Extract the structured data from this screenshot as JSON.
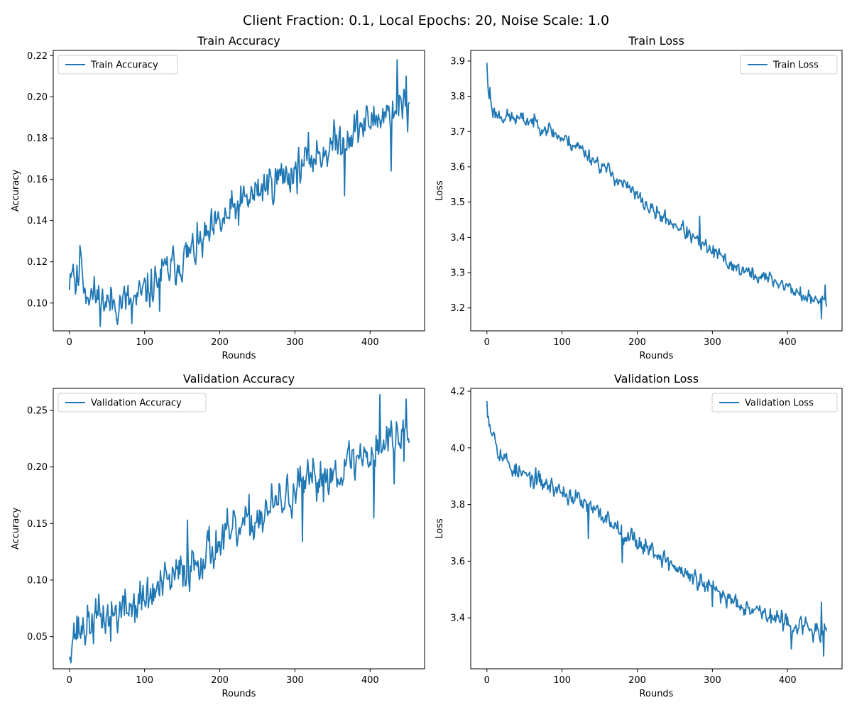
{
  "figure_title": "Client Fraction: 0.1, Local Epochs: 20, Noise Scale: 1.0",
  "chart_data": [
    {
      "type": "line",
      "title": "Train Accuracy",
      "xlabel": "Rounds",
      "ylabel": "Accuracy",
      "xlim": [
        -21.5,
        472.5
      ],
      "ylim": [
        0.0865,
        0.2225
      ],
      "xticks": [
        0,
        100,
        200,
        300,
        400
      ],
      "yticks": [
        0.1,
        0.12,
        0.14,
        0.16,
        0.18,
        0.2,
        0.22
      ],
      "ytick_decimals": 2,
      "legend_loc": "upper left",
      "grid": false,
      "series": [
        {
          "name": "Train Accuracy",
          "color": "#1f77b4",
          "noise": 0.0075,
          "seed": 11,
          "points": [
            [
              0,
              0.112
            ],
            [
              2,
              0.118
            ],
            [
              5,
              0.12
            ],
            [
              8,
              0.109
            ],
            [
              12,
              0.112
            ],
            [
              15,
              0.125
            ],
            [
              20,
              0.108
            ],
            [
              30,
              0.104
            ],
            [
              40,
              0.102
            ],
            [
              50,
              0.1
            ],
            [
              60,
              0.1
            ],
            [
              70,
              0.101
            ],
            [
              80,
              0.1
            ],
            [
              90,
              0.101
            ],
            [
              100,
              0.105
            ],
            [
              110,
              0.108
            ],
            [
              120,
              0.113
            ],
            [
              140,
              0.118
            ],
            [
              160,
              0.124
            ],
            [
              180,
              0.13
            ],
            [
              200,
              0.138
            ],
            [
              220,
              0.145
            ],
            [
              240,
              0.151
            ],
            [
              260,
              0.157
            ],
            [
              280,
              0.161
            ],
            [
              300,
              0.164
            ],
            [
              320,
              0.17
            ],
            [
              340,
              0.174
            ],
            [
              360,
              0.179
            ],
            [
              380,
              0.184
            ],
            [
              400,
              0.188
            ],
            [
              420,
              0.192
            ],
            [
              440,
              0.196
            ],
            [
              452,
              0.195
            ]
          ],
          "spikes": [
            [
              15,
              0.125
            ],
            [
              83,
              0.09
            ],
            [
              120,
              0.096
            ],
            [
              366,
              0.152
            ],
            [
              428,
              0.164
            ],
            [
              436,
              0.218
            ],
            [
              450,
              0.183
            ],
            [
              448,
              0.21
            ]
          ]
        }
      ]
    },
    {
      "type": "line",
      "title": "Train Loss",
      "xlabel": "Rounds",
      "ylabel": "Loss",
      "xlim": [
        -21.5,
        472.5
      ],
      "ylim": [
        3.135,
        3.93
      ],
      "xticks": [
        0,
        100,
        200,
        300,
        400
      ],
      "yticks": [
        3.2,
        3.3,
        3.4,
        3.5,
        3.6,
        3.7,
        3.8,
        3.9
      ],
      "ytick_decimals": 1,
      "legend_loc": "upper right",
      "grid": false,
      "series": [
        {
          "name": "Train Loss",
          "color": "#1f77b4",
          "noise": 0.017,
          "seed": 23,
          "points": [
            [
              0,
              3.9
            ],
            [
              2,
              3.8
            ],
            [
              5,
              3.79
            ],
            [
              8,
              3.76
            ],
            [
              12,
              3.75
            ],
            [
              20,
              3.745
            ],
            [
              40,
              3.735
            ],
            [
              60,
              3.73
            ],
            [
              80,
              3.71
            ],
            [
              100,
              3.68
            ],
            [
              120,
              3.66
            ],
            [
              140,
              3.625
            ],
            [
              160,
              3.59
            ],
            [
              180,
              3.555
            ],
            [
              200,
              3.515
            ],
            [
              220,
              3.475
            ],
            [
              240,
              3.45
            ],
            [
              260,
              3.425
            ],
            [
              280,
              3.385
            ],
            [
              300,
              3.36
            ],
            [
              320,
              3.33
            ],
            [
              340,
              3.305
            ],
            [
              360,
              3.29
            ],
            [
              380,
              3.28
            ],
            [
              400,
              3.26
            ],
            [
              420,
              3.235
            ],
            [
              440,
              3.215
            ],
            [
              452,
              3.23
            ]
          ],
          "spikes": [
            [
              0,
              3.895
            ],
            [
              4,
              3.825
            ],
            [
              283,
              3.46
            ],
            [
              445,
              3.17
            ],
            [
              450,
              3.265
            ]
          ]
        }
      ]
    },
    {
      "type": "line",
      "title": "Validation Accuracy",
      "xlabel": "Rounds",
      "ylabel": "Accuracy",
      "xlim": [
        -21.5,
        472.5
      ],
      "ylim": [
        0.0215,
        0.2695
      ],
      "xticks": [
        0,
        100,
        200,
        300,
        400
      ],
      "yticks": [
        0.05,
        0.1,
        0.15,
        0.2,
        0.25
      ],
      "ytick_decimals": 2,
      "legend_loc": "upper left",
      "grid": false,
      "series": [
        {
          "name": "Validation Accuracy",
          "color": "#1f77b4",
          "noise": 0.015,
          "seed": 37,
          "points": [
            [
              0,
              0.03
            ],
            [
              2,
              0.05
            ],
            [
              5,
              0.055
            ],
            [
              10,
              0.055
            ],
            [
              20,
              0.058
            ],
            [
              40,
              0.067
            ],
            [
              60,
              0.07
            ],
            [
              80,
              0.076
            ],
            [
              100,
              0.083
            ],
            [
              120,
              0.092
            ],
            [
              140,
              0.102
            ],
            [
              160,
              0.112
            ],
            [
              180,
              0.124
            ],
            [
              200,
              0.133
            ],
            [
              220,
              0.141
            ],
            [
              240,
              0.15
            ],
            [
              260,
              0.16
            ],
            [
              280,
              0.168
            ],
            [
              300,
              0.178
            ],
            [
              320,
              0.185
            ],
            [
              340,
              0.192
            ],
            [
              360,
              0.199
            ],
            [
              380,
              0.206
            ],
            [
              400,
              0.213
            ],
            [
              420,
              0.222
            ],
            [
              440,
              0.23
            ],
            [
              452,
              0.23
            ]
          ],
          "spikes": [
            [
              0,
              0.03
            ],
            [
              55,
              0.046
            ],
            [
              157,
              0.153
            ],
            [
              310,
              0.134
            ],
            [
              405,
              0.155
            ],
            [
              413,
              0.264
            ],
            [
              432,
              0.185
            ],
            [
              445,
              0.205
            ],
            [
              448,
              0.26
            ]
          ]
        }
      ]
    },
    {
      "type": "line",
      "title": "Validation Loss",
      "xlabel": "Rounds",
      "ylabel": "Loss",
      "xlim": [
        -21.5,
        472.5
      ],
      "ylim": [
        3.22,
        4.21
      ],
      "xticks": [
        0,
        100,
        200,
        300,
        400
      ],
      "yticks": [
        3.4,
        3.6,
        3.8,
        4.0,
        4.2
      ],
      "ytick_decimals": 1,
      "legend_loc": "upper right",
      "grid": false,
      "series": [
        {
          "name": "Validation Loss",
          "color": "#1f77b4",
          "noise": 0.026,
          "seed": 53,
          "points": [
            [
              0,
              4.16
            ],
            [
              3,
              4.1
            ],
            [
              6,
              4.07
            ],
            [
              10,
              4.05
            ],
            [
              15,
              4.0
            ],
            [
              20,
              3.975
            ],
            [
              30,
              3.94
            ],
            [
              40,
              3.915
            ],
            [
              60,
              3.89
            ],
            [
              80,
              3.87
            ],
            [
              100,
              3.845
            ],
            [
              120,
              3.82
            ],
            [
              140,
              3.78
            ],
            [
              160,
              3.75
            ],
            [
              180,
              3.71
            ],
            [
              200,
              3.67
            ],
            [
              220,
              3.64
            ],
            [
              240,
              3.6
            ],
            [
              260,
              3.56
            ],
            [
              280,
              3.53
            ],
            [
              300,
              3.5
            ],
            [
              320,
              3.47
            ],
            [
              340,
              3.45
            ],
            [
              360,
              3.43
            ],
            [
              380,
              3.4
            ],
            [
              400,
              3.38
            ],
            [
              420,
              3.37
            ],
            [
              440,
              3.35
            ],
            [
              452,
              3.34
            ]
          ],
          "spikes": [
            [
              0,
              4.165
            ],
            [
              135,
              3.68
            ],
            [
              180,
              3.595
            ],
            [
              300,
              3.44
            ],
            [
              405,
              3.29
            ],
            [
              445,
              3.455
            ],
            [
              448,
              3.265
            ]
          ]
        }
      ]
    }
  ]
}
